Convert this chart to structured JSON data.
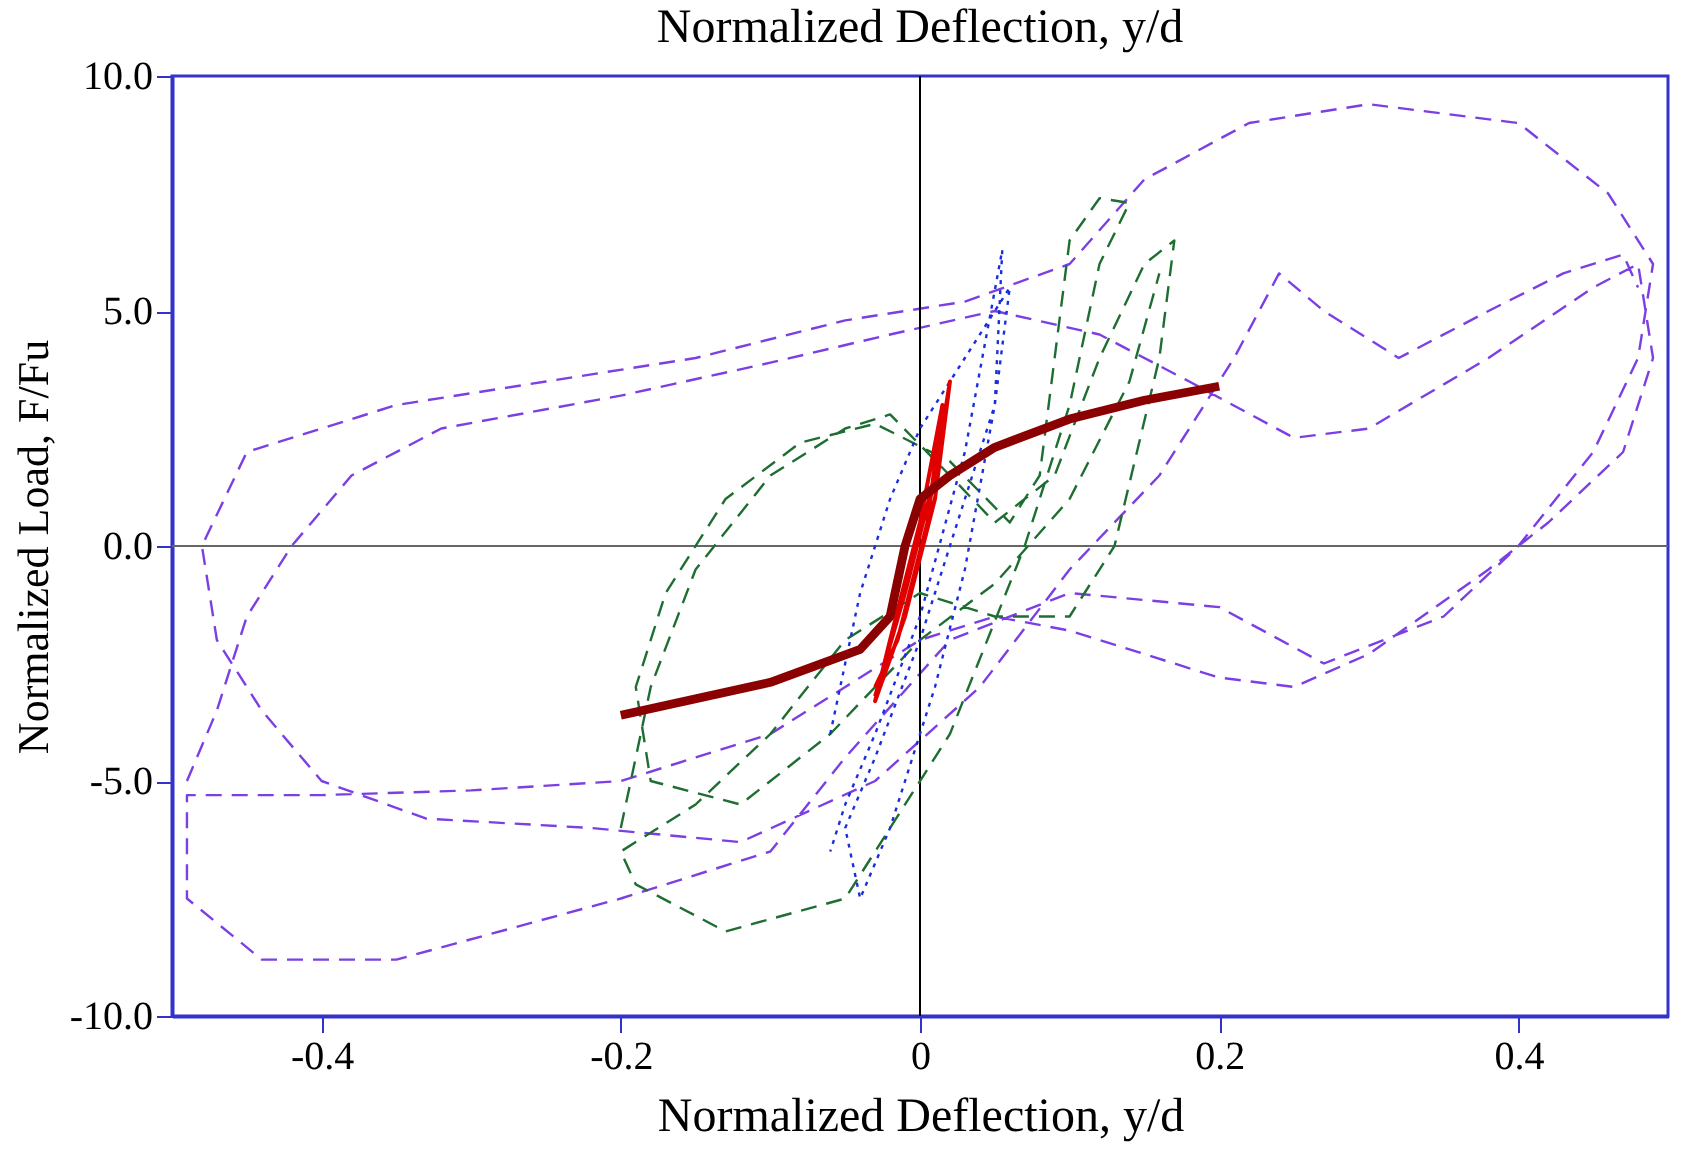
{
  "chart_data": {
    "type": "line",
    "x2label": "Normalized Deflection,  y/d",
    "xlabel": "Normalized Deflection,  y/d",
    "ylabel": "Normalized Load,  F/Fu",
    "xlim": [
      -0.5,
      0.5
    ],
    "ylim": [
      -10,
      10
    ],
    "xticks": [
      {
        "value": -0.4,
        "label": "-0.4"
      },
      {
        "value": -0.2,
        "label": "-0.2"
      },
      {
        "value": 0,
        "label": "0"
      },
      {
        "value": 0.2,
        "label": "0.2"
      },
      {
        "value": 0.4,
        "label": "0.4"
      }
    ],
    "yticks": [
      {
        "value": -10,
        "label": "-10.0"
      },
      {
        "value": -5,
        "label": "-5.0"
      },
      {
        "value": 0,
        "label": "0.0"
      },
      {
        "value": 5,
        "label": "5.0"
      },
      {
        "value": 10,
        "label": "10.0"
      }
    ],
    "grid": false,
    "ref_lines": [
      {
        "axis": "x",
        "value": 0,
        "color": "#000000"
      },
      {
        "axis": "y",
        "value": 0,
        "color": "#666666"
      }
    ],
    "series": [
      {
        "color": "#7b3fe4",
        "line_style": "dashed",
        "x": [
          -0.49,
          -0.47,
          -0.45,
          -0.42,
          -0.38,
          -0.32,
          -0.2,
          -0.1,
          -0.02,
          0.05,
          0.12,
          0.18,
          0.25,
          0.3,
          0.38,
          0.45,
          0.48,
          0.49,
          0.47,
          0.42,
          0.38,
          0.3,
          0.25,
          0.2,
          0.1,
          0.05,
          0,
          -0.05,
          -0.1,
          -0.2,
          -0.3,
          -0.4,
          -0.49,
          -0.49,
          -0.44,
          -0.35,
          -0.2,
          -0.1,
          -0.05,
          0.02,
          0.1,
          0.2,
          0.27,
          0.35,
          0.4,
          0.45,
          0.48,
          0.49,
          0.46,
          0.4,
          0.3,
          0.22,
          0.15,
          0.1,
          0.03,
          -0.05,
          -0.15,
          -0.25,
          -0.35,
          -0.45,
          -0.48,
          -0.47,
          -0.44,
          -0.4,
          -0.33,
          -0.22,
          -0.12,
          -0.03,
          0.04,
          0.1,
          0.16,
          0.21,
          0.24,
          0.27,
          0.32,
          0.38,
          0.43,
          0.47,
          0.48
        ],
        "values": [
          -5,
          -3.5,
          -1.5,
          0,
          1.5,
          2.5,
          3.2,
          3.9,
          4.5,
          5,
          4.5,
          3.5,
          2.3,
          2.5,
          4,
          5.5,
          6,
          4,
          2,
          0.5,
          -0.5,
          -2.3,
          -3,
          -2.8,
          -1.8,
          -1.5,
          -2,
          -3,
          -4,
          -5,
          -5.2,
          -5.3,
          -5.3,
          -7.5,
          -8.8,
          -8.8,
          -7.5,
          -6.5,
          -4.5,
          -2,
          -1,
          -1.3,
          -2.5,
          -1.5,
          0,
          2,
          4,
          6,
          7.5,
          9,
          9.4,
          9,
          7.8,
          6,
          5.2,
          4.8,
          4,
          3.5,
          3,
          2,
          0,
          -2,
          -3.5,
          -5,
          -5.8,
          -6,
          -6.3,
          -5,
          -3,
          -0.5,
          1.5,
          4,
          5.8,
          5,
          4,
          5,
          5.8,
          6.2,
          5.5
        ]
      },
      {
        "color": "#1e6e32",
        "line_style": "dashed",
        "x": [
          -0.2,
          -0.18,
          -0.15,
          -0.1,
          -0.05,
          -0.02,
          0.02,
          0.05,
          0.09,
          0.12,
          0.15,
          0.17,
          0.16,
          0.13,
          0.1,
          0.05,
          0,
          -0.05,
          -0.1,
          -0.15,
          -0.2,
          -0.19,
          -0.13,
          -0.05,
          0.02,
          0.07,
          0.1,
          0.12,
          0.14,
          0.12,
          0.1,
          0.09,
          0.08,
          0.06,
          0.02,
          -0.03,
          -0.08,
          -0.13,
          -0.17,
          -0.19,
          -0.18,
          -0.12,
          -0.06,
          0,
          0.05,
          0.1,
          0.14,
          0.16
        ],
        "values": [
          -6,
          -3,
          -0.5,
          1.5,
          2.5,
          2.8,
          1.5,
          0.5,
          1.5,
          4,
          6,
          6.5,
          4,
          0,
          -1.5,
          -1.5,
          -1,
          -2,
          -4,
          -5.5,
          -6.5,
          -7.2,
          -8.2,
          -7.5,
          -4,
          0,
          3,
          6,
          7.3,
          7.4,
          6.5,
          4,
          1.5,
          0.5,
          1.8,
          2.6,
          2.2,
          1,
          -1,
          -3,
          -5,
          -5.5,
          -4,
          -2,
          -0.8,
          1,
          3.5,
          5.8
        ]
      },
      {
        "color": "#1a2ee0",
        "line_style": "dotted",
        "x": [
          -0.06,
          -0.04,
          -0.02,
          0,
          0.03,
          0.05,
          0.06,
          0.05,
          0.02,
          0,
          -0.03,
          -0.05,
          -0.04,
          -0.02,
          0.01,
          0.03,
          0.05,
          0.055,
          0.03,
          0,
          -0.03,
          -0.05,
          -0.06
        ],
        "values": [
          -4,
          -1,
          1,
          2.5,
          4,
          5,
          5.5,
          3,
          0,
          -2,
          -4.5,
          -6,
          -7.5,
          -6,
          -3,
          -0.5,
          3,
          6.3,
          2,
          -1.5,
          -4,
          -5.5,
          -6.5
        ]
      },
      {
        "color": "#e00000",
        "line_style": "solid",
        "x": [
          -0.03,
          -0.01,
          0.01,
          0.02,
          0.01,
          -0.01,
          -0.03,
          -0.02,
          0,
          0.015,
          0.005,
          -0.015,
          -0.03
        ],
        "values": [
          -3.2,
          -1,
          1.5,
          3.5,
          1,
          -1.5,
          -3.3,
          -2,
          0.5,
          3,
          0.5,
          -2,
          -3
        ]
      },
      {
        "color": "#8b0000",
        "line_style": "solid",
        "x": [
          -0.2,
          -0.1,
          -0.04,
          -0.02,
          -0.01,
          0,
          0.02,
          0.05,
          0.1,
          0.15,
          0.2
        ],
        "values": [
          -3.6,
          -2.9,
          -2.2,
          -1.5,
          0,
          1,
          1.5,
          2.1,
          2.7,
          3.1,
          3.4
        ]
      }
    ]
  }
}
